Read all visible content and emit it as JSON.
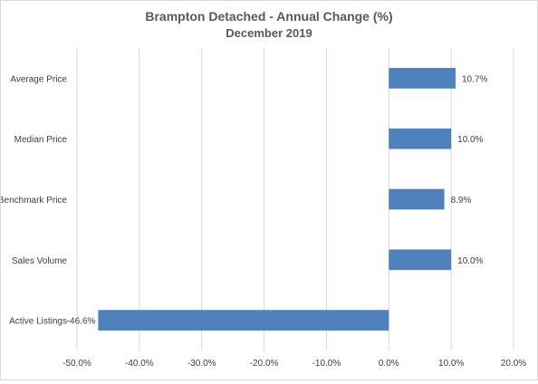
{
  "chart_data": {
    "type": "bar",
    "orientation": "horizontal",
    "title": "Brampton Detached - Annual Change (%)",
    "subtitle": "December 2019",
    "categories": [
      "Average Price",
      "Median Price",
      "Benchmark Price",
      "Sales Volume",
      "Active Listings"
    ],
    "values": [
      10.7,
      10.0,
      8.9,
      10.0,
      -46.6
    ],
    "data_labels": [
      "10.7%",
      "10.0%",
      "8.9%",
      "10.0%",
      "-46.6%"
    ],
    "xlim": [
      -50,
      20
    ],
    "x_ticks": [
      -50,
      -40,
      -30,
      -20,
      -10,
      0,
      10,
      20
    ],
    "x_tick_labels": [
      "-50.0%",
      "-40.0%",
      "-30.0%",
      "-20.0%",
      "-10.0%",
      "0.0%",
      "10.0%",
      "20.0%"
    ],
    "xlabel": "",
    "ylabel": "",
    "grid": true,
    "legend": "none",
    "colors": {
      "bar": "#4f81bd",
      "grid": "#d9d9d9"
    }
  }
}
